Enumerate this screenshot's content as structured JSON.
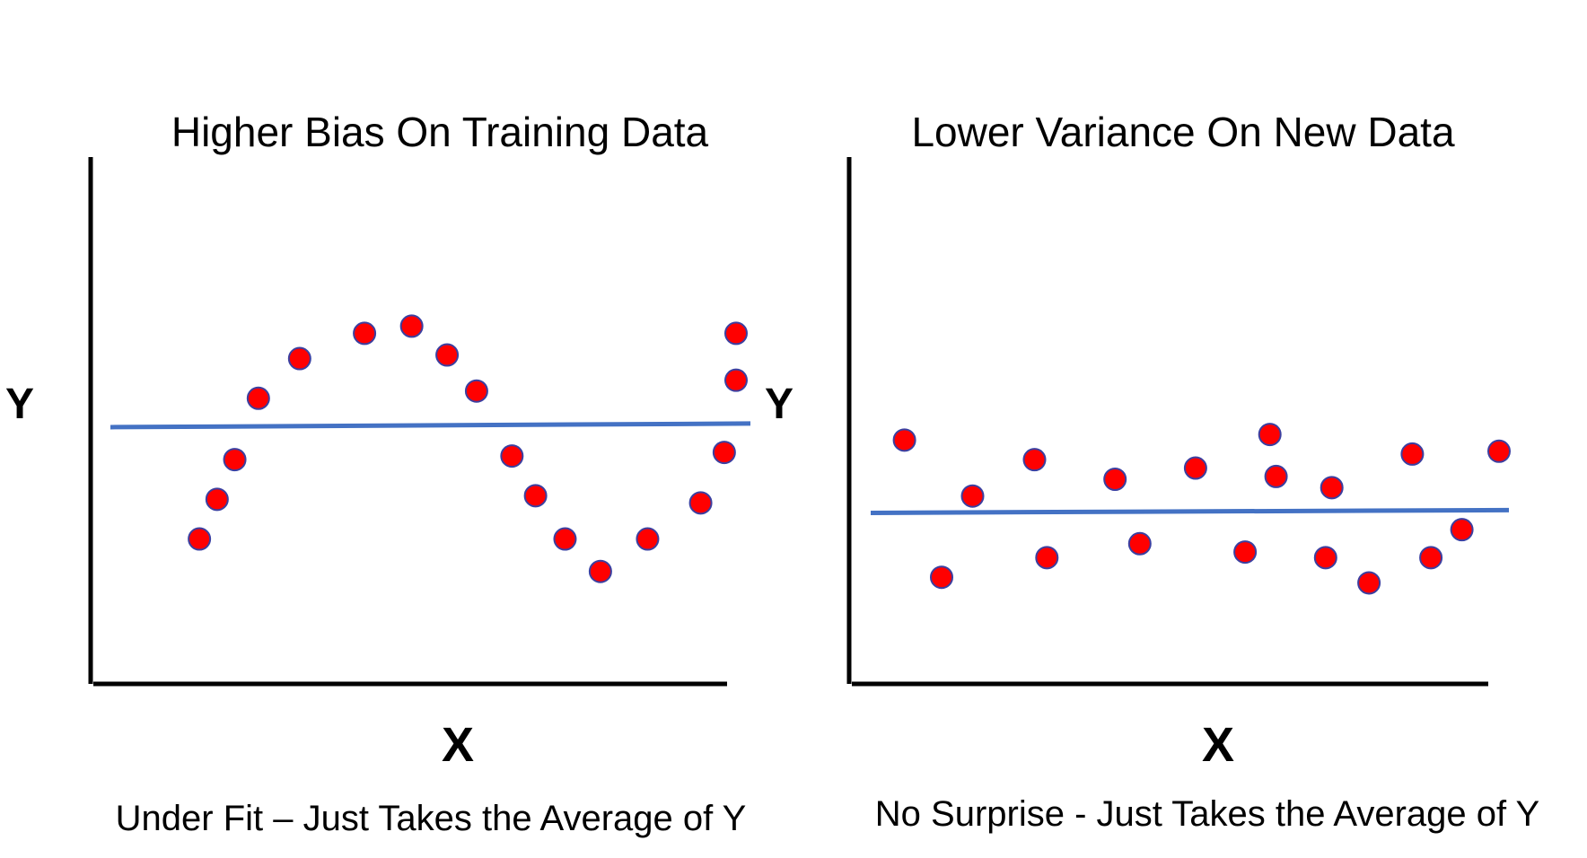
{
  "colors": {
    "point_fill": "#ff0000",
    "point_stroke": "#3b3fa0",
    "fit_line": "#4472c4",
    "axis": "#000000",
    "text": "#000000"
  },
  "chart_data": [
    {
      "type": "scatter",
      "title": "Higher Bias On Training Data",
      "xlabel": "X",
      "ylabel": "Y",
      "caption": "Under Fit – Just Takes the Average of Y",
      "xlim": [
        0,
        100
      ],
      "ylim": [
        0,
        100
      ],
      "grid": false,
      "points": [
        {
          "x": 9,
          "y": 22
        },
        {
          "x": 12,
          "y": 33
        },
        {
          "x": 15,
          "y": 44
        },
        {
          "x": 19,
          "y": 61
        },
        {
          "x": 26,
          "y": 72
        },
        {
          "x": 37,
          "y": 79
        },
        {
          "x": 45,
          "y": 81
        },
        {
          "x": 51,
          "y": 73
        },
        {
          "x": 56,
          "y": 63
        },
        {
          "x": 62,
          "y": 45
        },
        {
          "x": 66,
          "y": 34
        },
        {
          "x": 71,
          "y": 22
        },
        {
          "x": 77,
          "y": 13
        },
        {
          "x": 85,
          "y": 22
        },
        {
          "x": 94,
          "y": 32
        },
        {
          "x": 98,
          "y": 46
        },
        {
          "x": 100,
          "y": 66
        },
        {
          "x": 100,
          "y": 79
        }
      ],
      "fit_line": {
        "y_start": 53,
        "y_end": 54
      }
    },
    {
      "type": "scatter",
      "title": "Lower Variance On New Data",
      "xlabel": "X",
      "ylabel": "Y",
      "caption": "No Surprise - Just Takes the Average of Y",
      "xlim": [
        0,
        100
      ],
      "ylim": [
        0,
        100
      ],
      "grid": false,
      "points": [
        {
          "x": 4,
          "y": 64
        },
        {
          "x": 10,
          "y": 15
        },
        {
          "x": 15,
          "y": 44
        },
        {
          "x": 25,
          "y": 57
        },
        {
          "x": 27,
          "y": 22
        },
        {
          "x": 38,
          "y": 50
        },
        {
          "x": 42,
          "y": 27
        },
        {
          "x": 51,
          "y": 54
        },
        {
          "x": 59,
          "y": 24
        },
        {
          "x": 63,
          "y": 66
        },
        {
          "x": 64,
          "y": 51
        },
        {
          "x": 72,
          "y": 22
        },
        {
          "x": 73,
          "y": 47
        },
        {
          "x": 79,
          "y": 13
        },
        {
          "x": 86,
          "y": 59
        },
        {
          "x": 89,
          "y": 22
        },
        {
          "x": 94,
          "y": 32
        },
        {
          "x": 100,
          "y": 60
        }
      ],
      "fit_line": {
        "y_start": 38,
        "y_end": 39
      }
    }
  ]
}
